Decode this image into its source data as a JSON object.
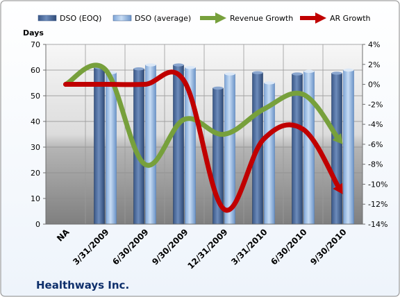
{
  "chart_data": {
    "type": "bar",
    "title": "",
    "company_label": "Healthways Inc.",
    "categories": [
      "NA",
      "3/31/2009",
      "6/30/2009",
      "9/30/2009",
      "12/31/2009",
      "3/31/2010",
      "6/30/2010",
      "9/30/2010"
    ],
    "ylabel_left": "Days",
    "ylim_left": [
      0,
      70
    ],
    "yticks_left": [
      "0",
      "10",
      "20",
      "30",
      "40",
      "50",
      "60",
      "70"
    ],
    "ylim_right": [
      -14,
      4
    ],
    "yticks_right": [
      "-14%",
      "-12%",
      "-10%",
      "-8%",
      "-6%",
      "-4%",
      "-2%",
      "0%",
      "2%",
      "4%"
    ],
    "legend_placement": "top",
    "series": [
      {
        "name": "DSO (EOQ)",
        "type": "bar",
        "axis": "left",
        "color": "#4a6a98",
        "values": [
          null,
          61,
          60.5,
          62,
          53,
          59,
          58.5,
          58.8
        ]
      },
      {
        "name": "DSO (average)",
        "type": "bar",
        "axis": "left",
        "color": "#8eb4e3",
        "values": [
          null,
          59,
          62,
          61,
          58.5,
          55,
          59.5,
          60
        ]
      },
      {
        "name": "Revenue Growth",
        "type": "line",
        "axis": "right",
        "unit": "%",
        "color": "#77a03c",
        "values": [
          0,
          1.5,
          -8,
          -3.5,
          -5,
          -2.5,
          -1,
          -6
        ]
      },
      {
        "name": "AR Growth",
        "type": "line",
        "axis": "right",
        "unit": "%",
        "color": "#c00000",
        "values": [
          0,
          0,
          0,
          0.3,
          -12.5,
          -5.5,
          -4.5,
          -11
        ]
      }
    ]
  }
}
